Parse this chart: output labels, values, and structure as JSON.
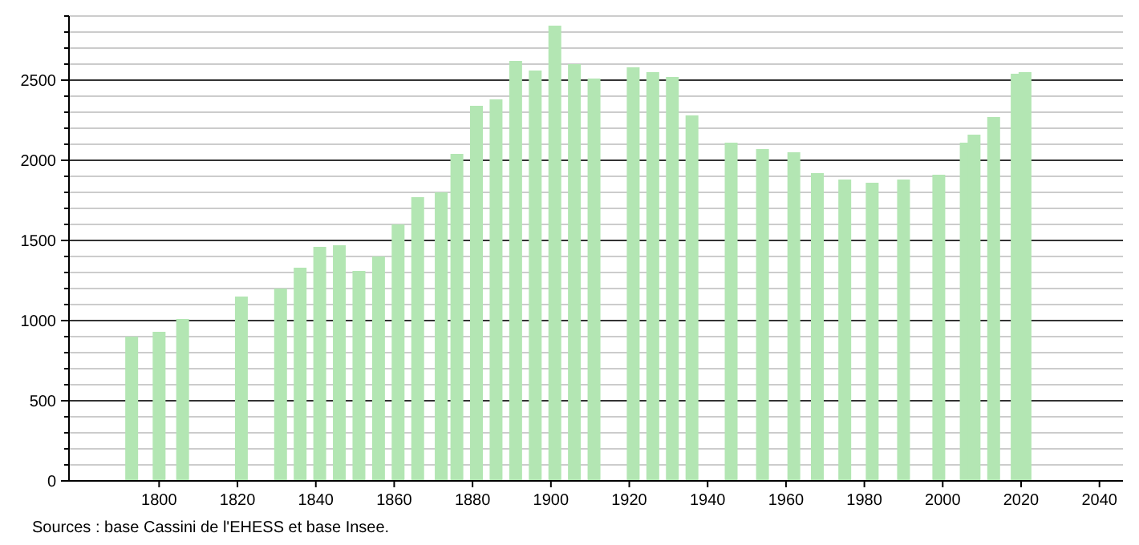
{
  "chart_data": {
    "type": "bar",
    "x": [
      1793,
      1800,
      1806,
      1821,
      1831,
      1836,
      1841,
      1846,
      1851,
      1856,
      1861,
      1866,
      1872,
      1876,
      1881,
      1886,
      1891,
      1896,
      1901,
      1906,
      1911,
      1921,
      1926,
      1931,
      1936,
      1946,
      1954,
      1962,
      1968,
      1975,
      1982,
      1990,
      1999,
      2006,
      2008,
      2013,
      2019,
      2021
    ],
    "values": [
      900,
      930,
      1010,
      1150,
      1200,
      1330,
      1460,
      1470,
      1310,
      1400,
      1600,
      1770,
      1800,
      2040,
      2340,
      2380,
      2620,
      2560,
      2840,
      2600,
      2510,
      2580,
      2550,
      2520,
      2280,
      2110,
      2070,
      2050,
      1920,
      1880,
      1860,
      1880,
      1910,
      2110,
      2160,
      2270,
      2540,
      2550
    ],
    "color": "#b3e6b3",
    "xlim": [
      1777,
      2046
    ],
    "xticks": [
      1800,
      1820,
      1840,
      1860,
      1880,
      1900,
      1920,
      1940,
      1960,
      1980,
      2000,
      2020,
      2040
    ],
    "ylim": [
      0,
      2900
    ],
    "yticks": [
      0,
      {
        "value": 100,
        "label": null
      },
      {
        "value": 200,
        "label": null
      },
      {
        "value": 300,
        "label": null
      },
      {
        "value": 400,
        "label": null
      },
      500,
      {
        "value": 600,
        "label": null
      },
      {
        "value": 700,
        "label": null
      },
      {
        "value": 800,
        "label": null
      },
      {
        "value": 900,
        "label": null
      },
      1000,
      {
        "value": 1100,
        "label": null
      },
      {
        "value": 1200,
        "label": null
      },
      {
        "value": 1300,
        "label": null
      },
      {
        "value": 1400,
        "label": null
      },
      1500,
      {
        "value": 1600,
        "label": null
      },
      {
        "value": 1700,
        "label": null
      },
      {
        "value": 1800,
        "label": null
      },
      {
        "value": 1900,
        "label": null
      },
      2000,
      {
        "value": 2100,
        "label": null
      },
      {
        "value": 2200,
        "label": null
      },
      {
        "value": 2300,
        "label": null
      },
      {
        "value": 2400,
        "label": null
      },
      2500,
      {
        "value": 2600,
        "label": null
      },
      {
        "value": 2700,
        "label": null
      },
      {
        "value": 2800,
        "label": null
      },
      {
        "value": 2900,
        "label": null
      }
    ],
    "grid": true,
    "annotations": [
      "Sources : base Cassini de l'EHESS et base Insee."
    ]
  }
}
